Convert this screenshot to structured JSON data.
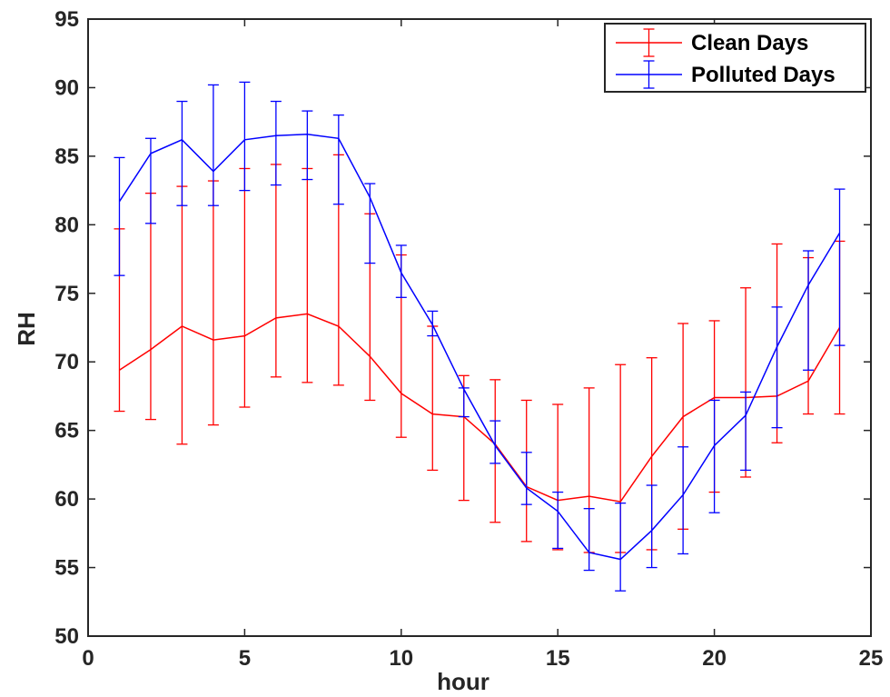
{
  "chart_data": {
    "type": "line",
    "xlabel": "hour",
    "ylabel": "RH",
    "xlim": [
      0,
      25
    ],
    "ylim": [
      50,
      95
    ],
    "xticks": [
      0,
      5,
      10,
      15,
      20,
      25
    ],
    "yticks": [
      50,
      55,
      60,
      65,
      70,
      75,
      80,
      85,
      90,
      95
    ],
    "grid": false,
    "legend_location": "top-right",
    "x": [
      1,
      2,
      3,
      4,
      5,
      6,
      7,
      8,
      9,
      10,
      11,
      12,
      13,
      14,
      15,
      16,
      17,
      18,
      19,
      20,
      21,
      22,
      23,
      24
    ],
    "series": [
      {
        "name": "Clean Days",
        "color": "#ff0000",
        "values": [
          69.4,
          70.9,
          72.6,
          71.6,
          71.9,
          73.2,
          73.5,
          72.6,
          70.4,
          67.7,
          66.2,
          66.0,
          64.0,
          60.9,
          59.9,
          60.2,
          59.8,
          63.1,
          66.0,
          67.4,
          67.4,
          67.5,
          68.6,
          72.5
        ],
        "err_upper": [
          79.7,
          82.3,
          82.8,
          83.2,
          84.1,
          84.4,
          84.1,
          85.1,
          80.8,
          77.8,
          72.6,
          69.0,
          68.7,
          67.2,
          66.9,
          68.1,
          69.8,
          70.3,
          72.8,
          73.0,
          75.4,
          78.6,
          77.6,
          78.8
        ],
        "err_lower": [
          66.4,
          65.8,
          64.0,
          65.4,
          66.7,
          68.9,
          68.5,
          68.3,
          67.2,
          64.5,
          62.1,
          59.9,
          58.3,
          56.9,
          56.3,
          56.1,
          56.1,
          56.3,
          57.8,
          60.5,
          61.6,
          64.1,
          66.2,
          66.2
        ]
      },
      {
        "name": "Polluted Days",
        "color": "#0000ff",
        "values": [
          81.7,
          85.2,
          86.2,
          83.9,
          86.2,
          86.5,
          86.6,
          86.3,
          82.0,
          76.5,
          72.7,
          68.0,
          63.9,
          60.8,
          59.1,
          56.1,
          55.6,
          57.7,
          60.3,
          63.9,
          66.1,
          71.1,
          75.6,
          79.4
        ],
        "err_upper": [
          84.9,
          86.3,
          89.0,
          90.2,
          90.4,
          89.0,
          88.3,
          88.0,
          83.0,
          78.5,
          73.7,
          68.1,
          65.7,
          63.4,
          60.5,
          59.3,
          59.7,
          61.0,
          63.8,
          67.2,
          67.8,
          74.0,
          78.1,
          82.6
        ],
        "err_lower": [
          76.3,
          80.1,
          81.4,
          81.4,
          82.5,
          82.9,
          83.3,
          81.5,
          77.2,
          74.7,
          71.9,
          66.0,
          62.6,
          59.6,
          56.4,
          54.8,
          53.3,
          55.0,
          56.0,
          59.0,
          62.1,
          65.2,
          69.4,
          71.2
        ]
      }
    ]
  }
}
